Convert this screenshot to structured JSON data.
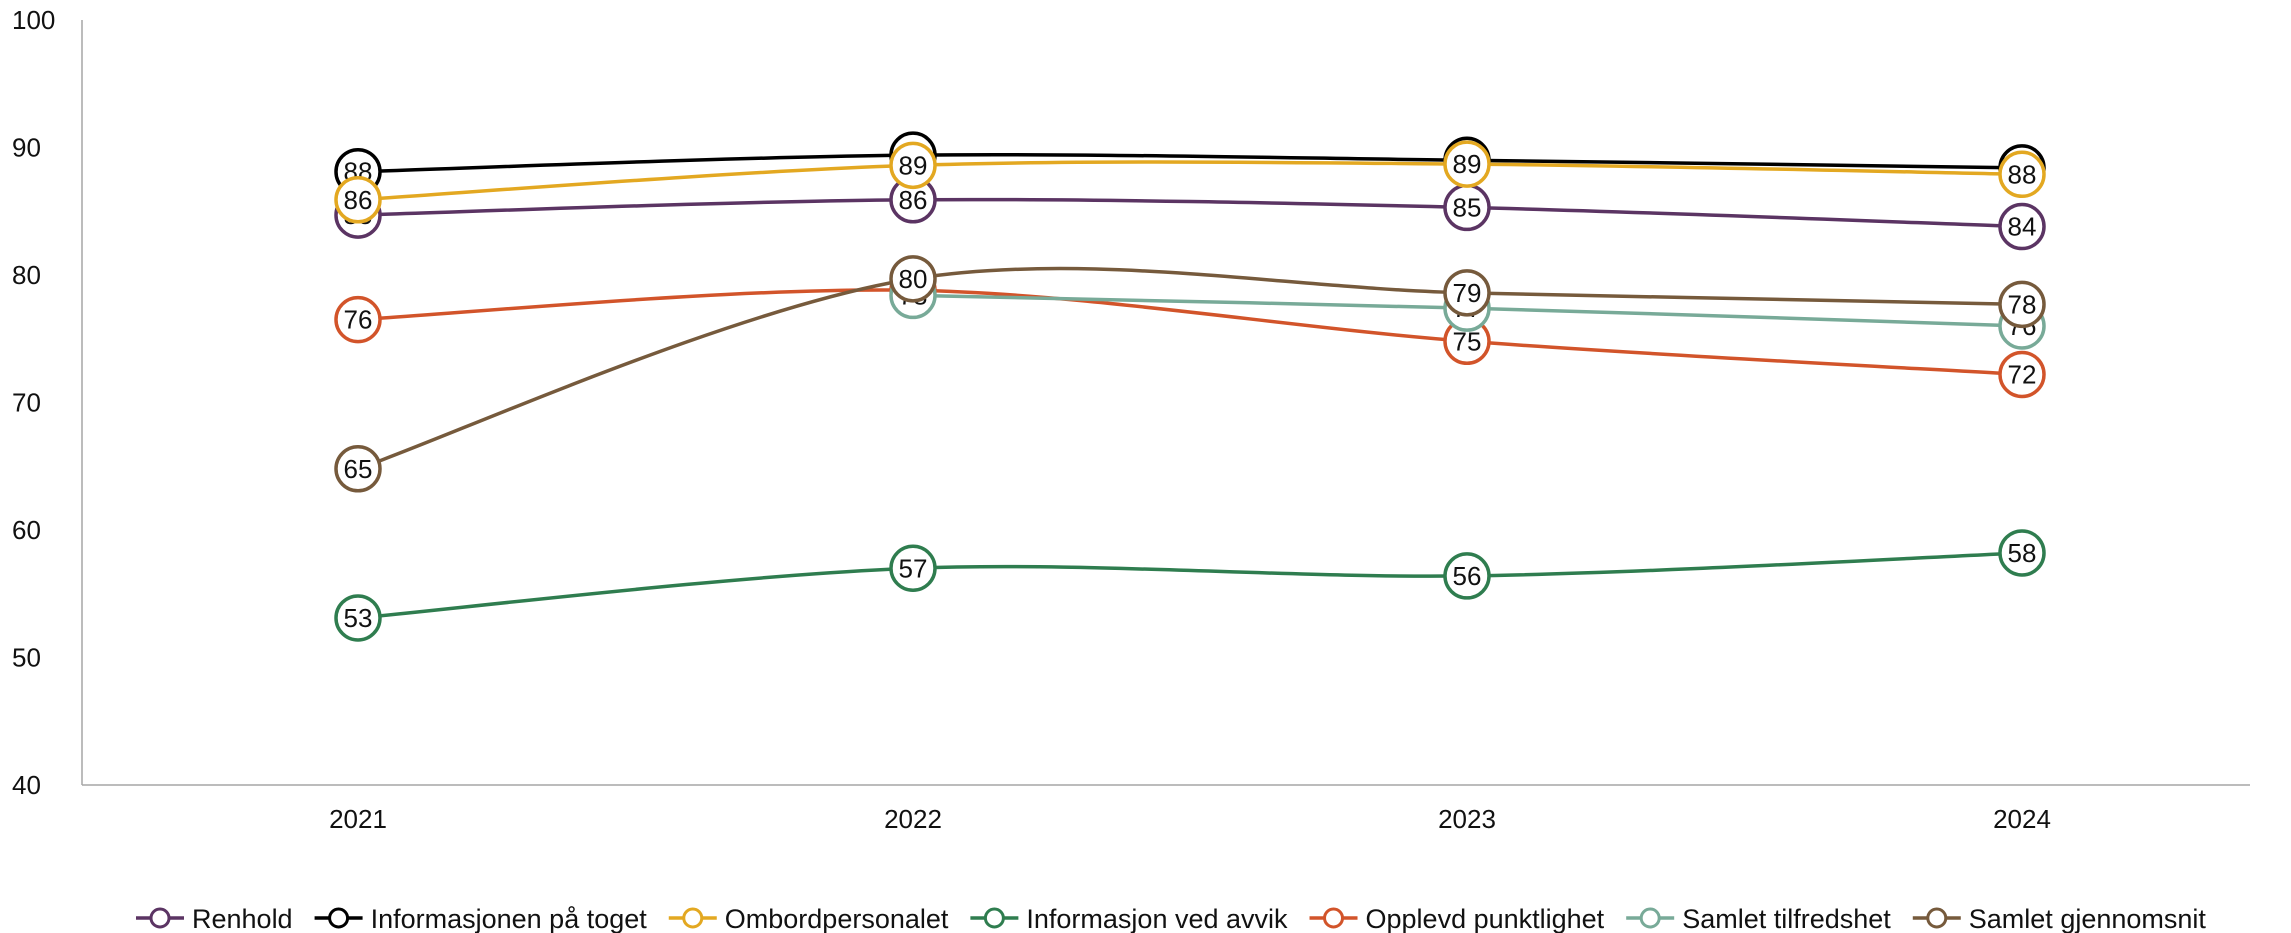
{
  "chart_data": {
    "type": "line",
    "title": "",
    "xlabel": "",
    "ylabel": "",
    "categories": [
      "2021",
      "2022",
      "2023",
      "2024"
    ],
    "ylim": [
      40,
      100
    ],
    "yticks": [
      40,
      50,
      60,
      70,
      80,
      90,
      100
    ],
    "grid": false,
    "legend_position": "bottom",
    "series": [
      {
        "name": "Renhold",
        "color": "#5b3463",
        "values": [
          85,
          86,
          85,
          84
        ],
        "labels": [
          "85",
          "86",
          "85",
          "84"
        ],
        "plot": [
          84.7,
          85.9,
          85.3,
          83.8
        ]
      },
      {
        "name": "Informasjonen på toget",
        "color": "#000000",
        "values": [
          88,
          89,
          89,
          88
        ],
        "labels": [
          "88",
          "89",
          "89",
          "88"
        ],
        "plot": [
          88.1,
          89.4,
          89.0,
          88.4
        ]
      },
      {
        "name": "Ombordpersonalet",
        "color": "#e3a821",
        "values": [
          86,
          89,
          89,
          88
        ],
        "labels": [
          "86",
          "89",
          "89",
          "88"
        ],
        "plot": [
          85.9,
          88.6,
          88.7,
          87.9
        ]
      },
      {
        "name": "Informasjon ved avvik",
        "color": "#2f7d4f",
        "values": [
          53,
          57,
          56,
          58
        ],
        "labels": [
          "53",
          "57",
          "56",
          "58"
        ],
        "plot": [
          53.1,
          57.0,
          56.4,
          58.2
        ]
      },
      {
        "name": "Opplevd punktlighet",
        "color": "#d2542a",
        "values": [
          76,
          79,
          75,
          72
        ],
        "labels": [
          "76",
          "79",
          "75",
          "72"
        ],
        "plot": [
          76.5,
          78.8,
          74.8,
          72.2
        ]
      },
      {
        "name": "Samlet tilfredshet",
        "color": "#78aa98",
        "values": [
          null,
          78,
          77,
          76
        ],
        "labels": [
          "",
          "78",
          "77",
          "76"
        ],
        "plot": [
          null,
          78.4,
          77.4,
          76.0
        ]
      },
      {
        "name": "Samlet gjennomsnit",
        "color": "#765a3c",
        "values": [
          65,
          80,
          79,
          78
        ],
        "labels": [
          "65",
          "80",
          "79",
          "78"
        ],
        "plot": [
          64.8,
          79.7,
          78.6,
          77.7
        ]
      }
    ]
  }
}
